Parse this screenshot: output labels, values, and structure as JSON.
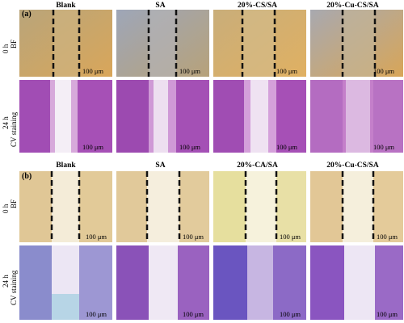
{
  "sections": [
    {
      "letter": "(a)",
      "columns": [
        "Blank",
        "SA",
        "20%-CS/SA",
        "20%-Cu-CS/SA"
      ],
      "rows": [
        {
          "time": "0 h",
          "mode": "BF"
        },
        {
          "time": "24 h",
          "mode": "CV staining"
        }
      ],
      "scale_label": "100 μm"
    },
    {
      "letter": "(b)",
      "columns": [
        "Blank",
        "SA",
        "20%-CA/SA",
        "20%-Cu-CS/SA"
      ],
      "rows": [
        {
          "time": "0 h",
          "mode": "BF"
        },
        {
          "time": "24 h",
          "mode": "CV staining"
        }
      ],
      "scale_label": "100 μm"
    }
  ],
  "colors": {
    "bf_tan": "#d9b266",
    "bf_blue_gray": "#a7a9b2",
    "cv_purple": "#8a3fb5",
    "cv_pink": "#d889c8",
    "bf_sparse_bg": "#f3ecd8",
    "cv_sparse_bg": "#ece6f4",
    "dash_line": "#111111"
  }
}
